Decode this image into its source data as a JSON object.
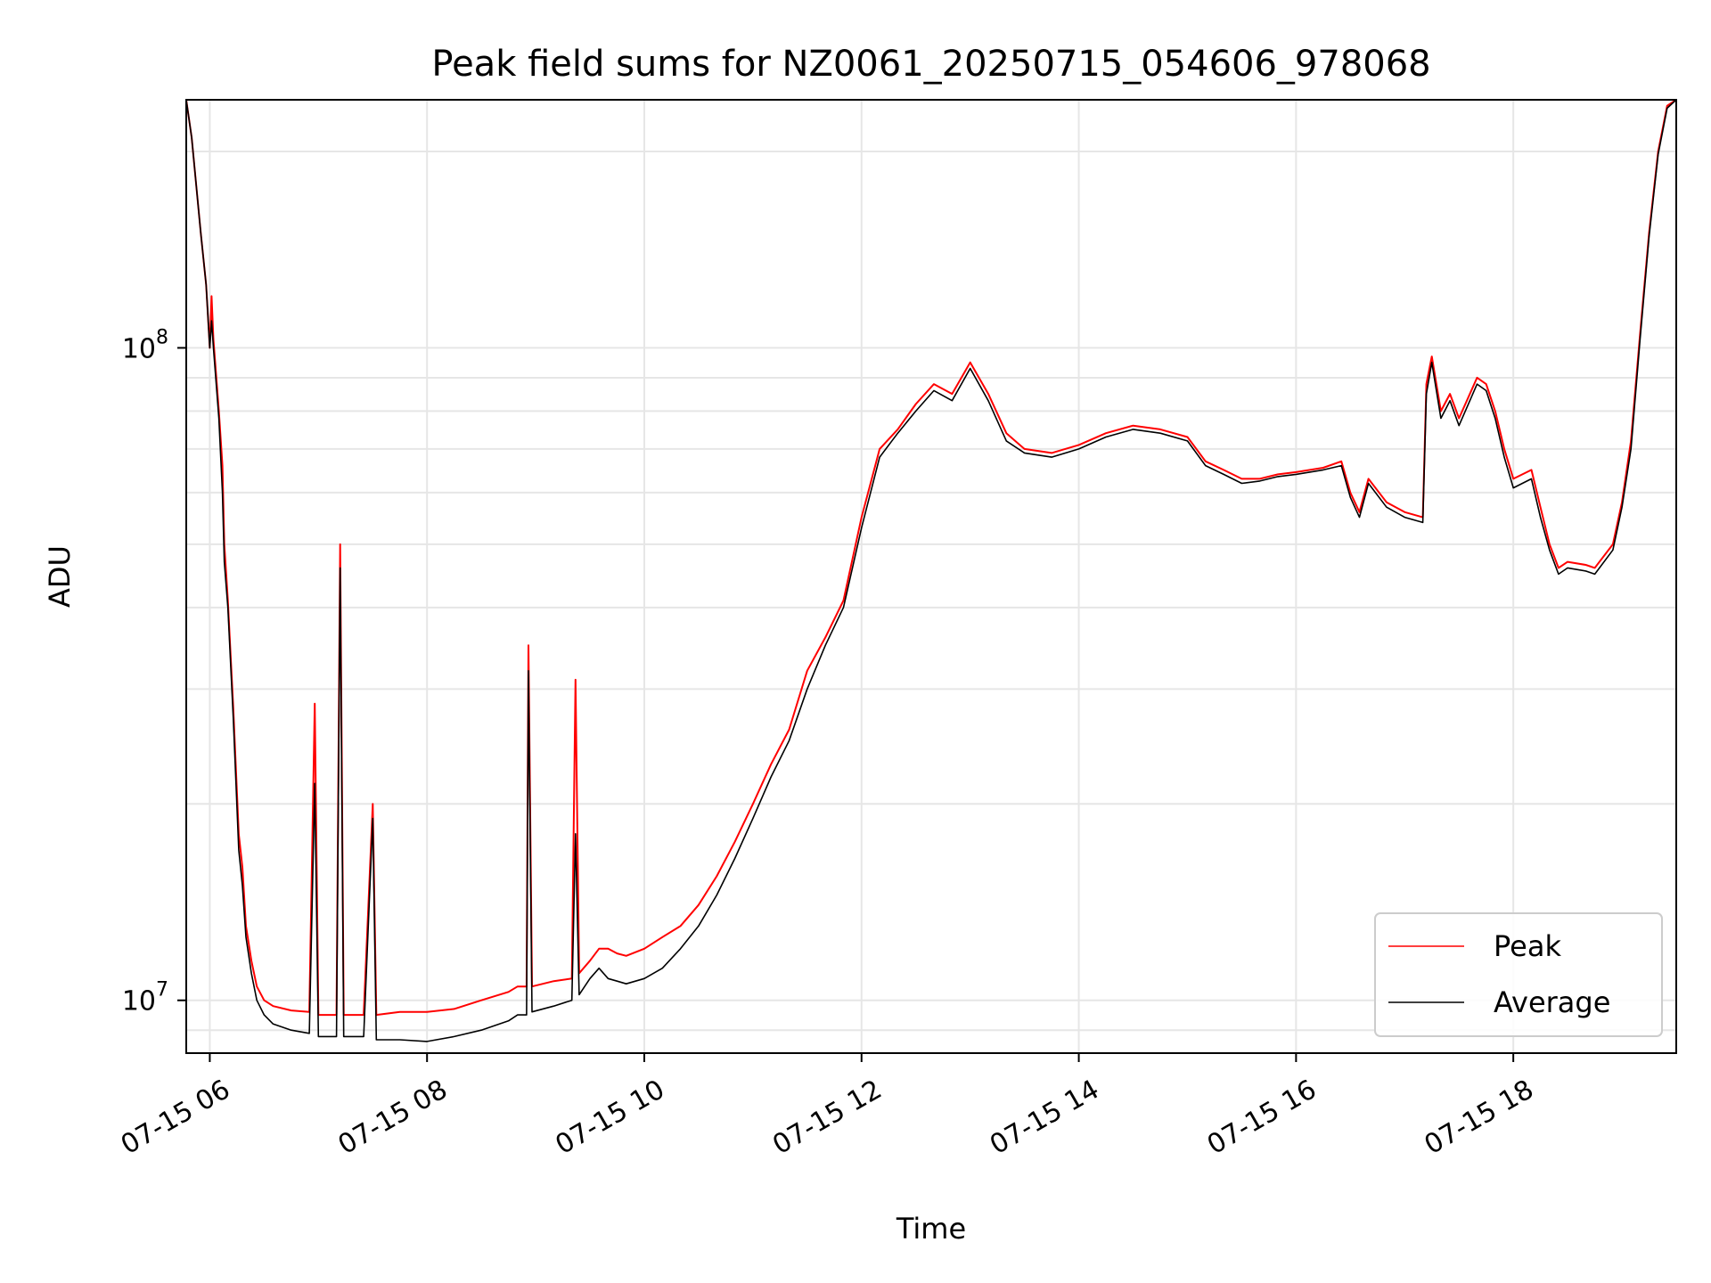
{
  "chart_data": {
    "type": "line",
    "title": "Peak field sums for NZ0061_20250715_054606_978068",
    "xlabel": "Time",
    "ylabel": "ADU",
    "xlim": [
      "07-15 05:47",
      "07-15 19:30"
    ],
    "ylim": [
      8300000,
      240000000
    ],
    "yscale": "log",
    "grid": true,
    "x_ticks": [
      {
        "t": "07-15 06:00",
        "label": "07-15 06"
      },
      {
        "t": "07-15 08:00",
        "label": "07-15 08"
      },
      {
        "t": "07-15 10:00",
        "label": "07-15 10"
      },
      {
        "t": "07-15 12:00",
        "label": "07-15 12"
      },
      {
        "t": "07-15 14:00",
        "label": "07-15 14"
      },
      {
        "t": "07-15 16:00",
        "label": "07-15 16"
      },
      {
        "t": "07-15 18:00",
        "label": "07-15 18"
      }
    ],
    "y_ticks": [
      {
        "value": 10000000,
        "base": "10",
        "exp": "7"
      },
      {
        "value": 100000000,
        "base": "10",
        "exp": "8"
      }
    ],
    "legend_position": "lower-right",
    "series": [
      {
        "name": "Peak",
        "color": "#ff0000",
        "points": [
          [
            "07-15 05:47",
            240000000
          ],
          [
            "07-15 05:50",
            210000000
          ],
          [
            "07-15 05:55",
            150000000
          ],
          [
            "07-15 05:58",
            125000000
          ],
          [
            "07-15 06:00",
            100000000
          ],
          [
            "07-15 06:01",
            120000000
          ],
          [
            "07-15 06:02",
            103000000
          ],
          [
            "07-15 06:05",
            80000000
          ],
          [
            "07-15 06:07",
            66000000
          ],
          [
            "07-15 06:08",
            50000000
          ],
          [
            "07-15 06:10",
            41000000
          ],
          [
            "07-15 06:13",
            28000000
          ],
          [
            "07-15 06:16",
            18000000
          ],
          [
            "07-15 06:18",
            16000000
          ],
          [
            "07-15 06:20",
            13000000
          ],
          [
            "07-15 06:23",
            11500000
          ],
          [
            "07-15 06:26",
            10500000
          ],
          [
            "07-15 06:30",
            10000000
          ],
          [
            "07-15 06:35",
            9800000
          ],
          [
            "07-15 06:45",
            9650000
          ],
          [
            "07-15 06:55",
            9600000
          ],
          [
            "07-15 06:58",
            28500000
          ],
          [
            "07-15 07:00",
            9500000
          ],
          [
            "07-15 07:10",
            9500000
          ],
          [
            "07-15 07:12",
            50000000
          ],
          [
            "07-15 07:14",
            9500000
          ],
          [
            "07-15 07:25",
            9500000
          ],
          [
            "07-15 07:30",
            20000000
          ],
          [
            "07-15 07:32",
            9500000
          ],
          [
            "07-15 07:45",
            9600000
          ],
          [
            "07-15 08:00",
            9600000
          ],
          [
            "07-15 08:15",
            9700000
          ],
          [
            "07-15 08:30",
            10000000
          ],
          [
            "07-15 08:45",
            10300000
          ],
          [
            "07-15 08:50",
            10500000
          ],
          [
            "07-15 08:55",
            10500000
          ],
          [
            "07-15 08:56",
            35000000
          ],
          [
            "07-15 08:58",
            10500000
          ],
          [
            "07-15 09:10",
            10700000
          ],
          [
            "07-15 09:20",
            10800000
          ],
          [
            "07-15 09:22",
            31000000
          ],
          [
            "07-15 09:24",
            11000000
          ],
          [
            "07-15 09:30",
            11500000
          ],
          [
            "07-15 09:35",
            12000000
          ],
          [
            "07-15 09:40",
            12000000
          ],
          [
            "07-15 09:45",
            11800000
          ],
          [
            "07-15 09:50",
            11700000
          ],
          [
            "07-15 10:00",
            12000000
          ],
          [
            "07-15 10:10",
            12500000
          ],
          [
            "07-15 10:20",
            13000000
          ],
          [
            "07-15 10:30",
            14000000
          ],
          [
            "07-15 10:40",
            15500000
          ],
          [
            "07-15 10:50",
            17500000
          ],
          [
            "07-15 11:00",
            20000000
          ],
          [
            "07-15 11:10",
            23000000
          ],
          [
            "07-15 11:20",
            26000000
          ],
          [
            "07-15 11:30",
            32000000
          ],
          [
            "07-15 11:40",
            36000000
          ],
          [
            "07-15 11:50",
            41000000
          ],
          [
            "07-15 12:00",
            55000000
          ],
          [
            "07-15 12:10",
            70000000
          ],
          [
            "07-15 12:20",
            75000000
          ],
          [
            "07-15 12:30",
            82000000
          ],
          [
            "07-15 12:40",
            88000000
          ],
          [
            "07-15 12:50",
            85000000
          ],
          [
            "07-15 13:00",
            95000000
          ],
          [
            "07-15 13:10",
            85000000
          ],
          [
            "07-15 13:20",
            74000000
          ],
          [
            "07-15 13:30",
            70000000
          ],
          [
            "07-15 13:45",
            69000000
          ],
          [
            "07-15 14:00",
            71000000
          ],
          [
            "07-15 14:15",
            74000000
          ],
          [
            "07-15 14:30",
            76000000
          ],
          [
            "07-15 14:45",
            75000000
          ],
          [
            "07-15 15:00",
            73000000
          ],
          [
            "07-15 15:10",
            67000000
          ],
          [
            "07-15 15:20",
            65000000
          ],
          [
            "07-15 15:30",
            63000000
          ],
          [
            "07-15 15:40",
            63000000
          ],
          [
            "07-15 15:50",
            64000000
          ],
          [
            "07-15 16:00",
            64500000
          ],
          [
            "07-15 16:15",
            65500000
          ],
          [
            "07-15 16:25",
            67000000
          ],
          [
            "07-15 16:30",
            60000000
          ],
          [
            "07-15 16:35",
            56000000
          ],
          [
            "07-15 16:40",
            63000000
          ],
          [
            "07-15 16:50",
            58000000
          ],
          [
            "07-15 17:00",
            56000000
          ],
          [
            "07-15 17:10",
            55000000
          ],
          [
            "07-15 17:12",
            88000000
          ],
          [
            "07-15 17:15",
            97000000
          ],
          [
            "07-15 17:20",
            80000000
          ],
          [
            "07-15 17:25",
            85000000
          ],
          [
            "07-15 17:30",
            78000000
          ],
          [
            "07-15 17:40",
            90000000
          ],
          [
            "07-15 17:45",
            88000000
          ],
          [
            "07-15 17:50",
            80000000
          ],
          [
            "07-15 17:55",
            70000000
          ],
          [
            "07-15 18:00",
            63000000
          ],
          [
            "07-15 18:10",
            65000000
          ],
          [
            "07-15 18:15",
            57000000
          ],
          [
            "07-15 18:20",
            50000000
          ],
          [
            "07-15 18:25",
            46000000
          ],
          [
            "07-15 18:30",
            47000000
          ],
          [
            "07-15 18:40",
            46500000
          ],
          [
            "07-15 18:45",
            46000000
          ],
          [
            "07-15 18:55",
            50000000
          ],
          [
            "07-15 19:00",
            58000000
          ],
          [
            "07-15 19:05",
            72000000
          ],
          [
            "07-15 19:10",
            105000000
          ],
          [
            "07-15 19:15",
            150000000
          ],
          [
            "07-15 19:20",
            200000000
          ],
          [
            "07-15 19:25",
            235000000
          ],
          [
            "07-15 19:30",
            240000000
          ]
        ]
      },
      {
        "name": "Average",
        "color": "#000000",
        "points": [
          [
            "07-15 05:47",
            240000000
          ],
          [
            "07-15 05:50",
            210000000
          ],
          [
            "07-15 05:55",
            150000000
          ],
          [
            "07-15 05:58",
            125000000
          ],
          [
            "07-15 06:00",
            100000000
          ],
          [
            "07-15 06:01",
            110000000
          ],
          [
            "07-15 06:02",
            100000000
          ],
          [
            "07-15 06:05",
            78000000
          ],
          [
            "07-15 06:07",
            60000000
          ],
          [
            "07-15 06:08",
            47000000
          ],
          [
            "07-15 06:10",
            40000000
          ],
          [
            "07-15 06:13",
            27000000
          ],
          [
            "07-15 06:16",
            17000000
          ],
          [
            "07-15 06:18",
            15000000
          ],
          [
            "07-15 06:20",
            12500000
          ],
          [
            "07-15 06:23",
            11000000
          ],
          [
            "07-15 06:26",
            10000000
          ],
          [
            "07-15 06:30",
            9500000
          ],
          [
            "07-15 06:35",
            9200000
          ],
          [
            "07-15 06:45",
            9000000
          ],
          [
            "07-15 06:55",
            8900000
          ],
          [
            "07-15 06:58",
            21500000
          ],
          [
            "07-15 07:00",
            8800000
          ],
          [
            "07-15 07:10",
            8800000
          ],
          [
            "07-15 07:12",
            46000000
          ],
          [
            "07-15 07:14",
            8800000
          ],
          [
            "07-15 07:25",
            8800000
          ],
          [
            "07-15 07:30",
            19000000
          ],
          [
            "07-15 07:32",
            8700000
          ],
          [
            "07-15 07:45",
            8700000
          ],
          [
            "07-15 08:00",
            8650000
          ],
          [
            "07-15 08:15",
            8800000
          ],
          [
            "07-15 08:30",
            9000000
          ],
          [
            "07-15 08:45",
            9300000
          ],
          [
            "07-15 08:50",
            9500000
          ],
          [
            "07-15 08:55",
            9500000
          ],
          [
            "07-15 08:56",
            32000000
          ],
          [
            "07-15 08:58",
            9600000
          ],
          [
            "07-15 09:10",
            9800000
          ],
          [
            "07-15 09:20",
            10000000
          ],
          [
            "07-15 09:22",
            18000000
          ],
          [
            "07-15 09:24",
            10200000
          ],
          [
            "07-15 09:30",
            10800000
          ],
          [
            "07-15 09:35",
            11200000
          ],
          [
            "07-15 09:40",
            10800000
          ],
          [
            "07-15 09:45",
            10700000
          ],
          [
            "07-15 09:50",
            10600000
          ],
          [
            "07-15 10:00",
            10800000
          ],
          [
            "07-15 10:10",
            11200000
          ],
          [
            "07-15 10:20",
            12000000
          ],
          [
            "07-15 10:30",
            13000000
          ],
          [
            "07-15 10:40",
            14500000
          ],
          [
            "07-15 10:50",
            16500000
          ],
          [
            "07-15 11:00",
            19000000
          ],
          [
            "07-15 11:10",
            22000000
          ],
          [
            "07-15 11:20",
            25000000
          ],
          [
            "07-15 11:30",
            30000000
          ],
          [
            "07-15 11:40",
            35000000
          ],
          [
            "07-15 11:50",
            40000000
          ],
          [
            "07-15 12:00",
            53000000
          ],
          [
            "07-15 12:10",
            68000000
          ],
          [
            "07-15 12:20",
            74000000
          ],
          [
            "07-15 12:30",
            80000000
          ],
          [
            "07-15 12:40",
            86000000
          ],
          [
            "07-15 12:50",
            83000000
          ],
          [
            "07-15 13:00",
            93000000
          ],
          [
            "07-15 13:10",
            83000000
          ],
          [
            "07-15 13:20",
            72000000
          ],
          [
            "07-15 13:30",
            69000000
          ],
          [
            "07-15 13:45",
            68000000
          ],
          [
            "07-15 14:00",
            70000000
          ],
          [
            "07-15 14:15",
            73000000
          ],
          [
            "07-15 14:30",
            75000000
          ],
          [
            "07-15 14:45",
            74000000
          ],
          [
            "07-15 15:00",
            72000000
          ],
          [
            "07-15 15:10",
            66000000
          ],
          [
            "07-15 15:20",
            64000000
          ],
          [
            "07-15 15:30",
            62000000
          ],
          [
            "07-15 15:40",
            62500000
          ],
          [
            "07-15 15:50",
            63500000
          ],
          [
            "07-15 16:00",
            64000000
          ],
          [
            "07-15 16:15",
            65000000
          ],
          [
            "07-15 16:25",
            66000000
          ],
          [
            "07-15 16:30",
            59000000
          ],
          [
            "07-15 16:35",
            55000000
          ],
          [
            "07-15 16:40",
            62000000
          ],
          [
            "07-15 16:50",
            57000000
          ],
          [
            "07-15 17:00",
            55000000
          ],
          [
            "07-15 17:10",
            54000000
          ],
          [
            "07-15 17:12",
            85000000
          ],
          [
            "07-15 17:15",
            95000000
          ],
          [
            "07-15 17:20",
            78000000
          ],
          [
            "07-15 17:25",
            83000000
          ],
          [
            "07-15 17:30",
            76000000
          ],
          [
            "07-15 17:40",
            88000000
          ],
          [
            "07-15 17:45",
            86000000
          ],
          [
            "07-15 17:50",
            78000000
          ],
          [
            "07-15 17:55",
            68000000
          ],
          [
            "07-15 18:00",
            61000000
          ],
          [
            "07-15 18:10",
            63000000
          ],
          [
            "07-15 18:15",
            55000000
          ],
          [
            "07-15 18:20",
            49000000
          ],
          [
            "07-15 18:25",
            45000000
          ],
          [
            "07-15 18:30",
            46000000
          ],
          [
            "07-15 18:40",
            45500000
          ],
          [
            "07-15 18:45",
            45000000
          ],
          [
            "07-15 18:55",
            49000000
          ],
          [
            "07-15 19:00",
            57000000
          ],
          [
            "07-15 19:05",
            70000000
          ],
          [
            "07-15 19:10",
            103000000
          ],
          [
            "07-15 19:15",
            148000000
          ],
          [
            "07-15 19:20",
            198000000
          ],
          [
            "07-15 19:25",
            233000000
          ],
          [
            "07-15 19:30",
            240000000
          ]
        ]
      }
    ]
  }
}
